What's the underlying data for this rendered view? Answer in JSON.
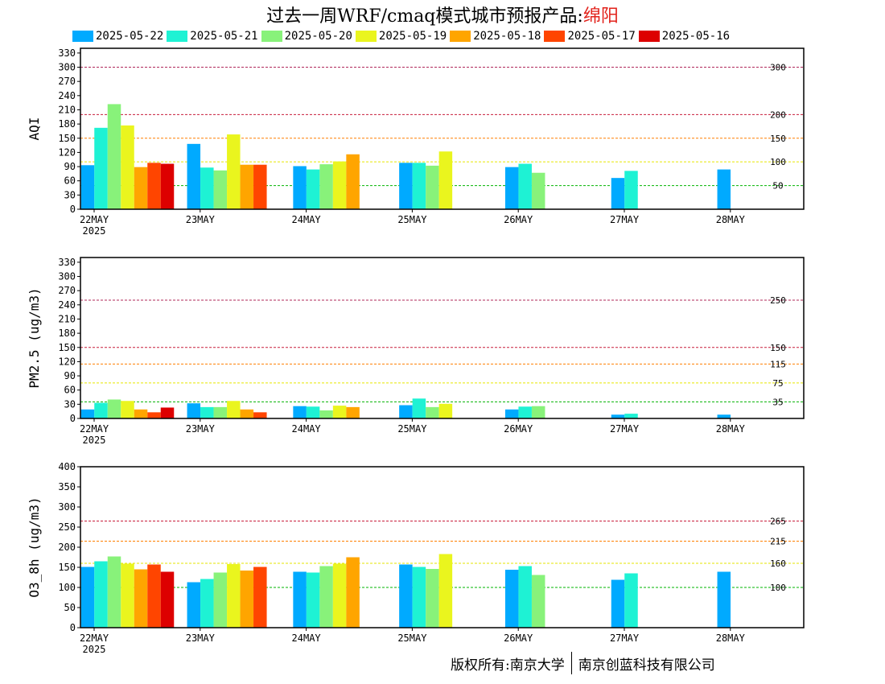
{
  "title": {
    "prefix": "过去一周WRF/cmaq模式城市预报产品:",
    "city": "绵阳"
  },
  "footer": {
    "left": "版权所有:南京大学",
    "right": "南京创蓝科技有限公司"
  },
  "colors": {
    "2025-05-22": "#00aaff",
    "2025-05-21": "#1ef2d4",
    "2025-05-20": "#88f27a",
    "2025-05-19": "#eaf51e",
    "2025-05-18": "#ffa500",
    "2025-05-17": "#ff4500",
    "2025-05-16": "#dd0000"
  },
  "chart_data": [
    {
      "type": "bar",
      "ylabel": "AQI",
      "ylim": [
        0,
        340
      ],
      "yticks": [
        0,
        30,
        60,
        90,
        120,
        150,
        180,
        210,
        240,
        270,
        300,
        330
      ],
      "categories": [
        "22MAY",
        "23MAY",
        "24MAY",
        "25MAY",
        "26MAY",
        "27MAY",
        "28MAY"
      ],
      "first_category_year": "2025",
      "reference_lines": [
        {
          "value": 300,
          "label": "300",
          "color": "#b0285a"
        },
        {
          "value": 200,
          "label": "200",
          "color": "#c81e3c"
        },
        {
          "value": 150,
          "label": "150",
          "color": "#ff7f00"
        },
        {
          "value": 100,
          "label": "100",
          "color": "#e6e600"
        },
        {
          "value": 50,
          "label": "50",
          "color": "#00b400"
        }
      ],
      "series": [
        {
          "name": "2025-05-22",
          "values": [
            93,
            138,
            91,
            98,
            89,
            66,
            84
          ]
        },
        {
          "name": "2025-05-21",
          "values": [
            172,
            88,
            84,
            98,
            96,
            81,
            null
          ]
        },
        {
          "name": "2025-05-20",
          "values": [
            222,
            82,
            95,
            92,
            77,
            null,
            null
          ]
        },
        {
          "name": "2025-05-19",
          "values": [
            177,
            158,
            101,
            122,
            null,
            null,
            null
          ]
        },
        {
          "name": "2025-05-18",
          "values": [
            89,
            94,
            116,
            null,
            null,
            null,
            null
          ]
        },
        {
          "name": "2025-05-17",
          "values": [
            98,
            94,
            null,
            null,
            null,
            null,
            null
          ]
        },
        {
          "name": "2025-05-16",
          "values": [
            96,
            null,
            null,
            null,
            null,
            null,
            null
          ]
        }
      ]
    },
    {
      "type": "bar",
      "ylabel": "PM2.5 (ug/m3)",
      "ylim": [
        0,
        340
      ],
      "yticks": [
        0,
        30,
        60,
        90,
        120,
        150,
        180,
        210,
        240,
        270,
        300,
        330
      ],
      "categories": [
        "22MAY",
        "23MAY",
        "24MAY",
        "25MAY",
        "26MAY",
        "27MAY",
        "28MAY"
      ],
      "first_category_year": "2025",
      "reference_lines": [
        {
          "value": 250,
          "label": "250",
          "color": "#b0285a"
        },
        {
          "value": 150,
          "label": "150",
          "color": "#c81e3c"
        },
        {
          "value": 115,
          "label": "115",
          "color": "#ff7f00"
        },
        {
          "value": 75,
          "label": "75",
          "color": "#e6e600"
        },
        {
          "value": 35,
          "label": "35",
          "color": "#00b400"
        }
      ],
      "series": [
        {
          "name": "2025-05-22",
          "values": [
            19,
            32,
            26,
            28,
            19,
            8,
            8
          ]
        },
        {
          "name": "2025-05-21",
          "values": [
            33,
            24,
            25,
            42,
            25,
            10,
            null
          ]
        },
        {
          "name": "2025-05-20",
          "values": [
            40,
            24,
            17,
            24,
            26,
            null,
            null
          ]
        },
        {
          "name": "2025-05-19",
          "values": [
            37,
            37,
            27,
            31,
            null,
            null,
            null
          ]
        },
        {
          "name": "2025-05-18",
          "values": [
            19,
            19,
            24,
            null,
            null,
            null,
            null
          ]
        },
        {
          "name": "2025-05-17",
          "values": [
            13,
            13,
            null,
            null,
            null,
            null,
            null
          ]
        },
        {
          "name": "2025-05-16",
          "values": [
            23,
            null,
            null,
            null,
            null,
            null,
            null
          ]
        }
      ]
    },
    {
      "type": "bar",
      "ylabel": "O3_8h (ug/m3)",
      "ylim": [
        0,
        400
      ],
      "yticks": [
        0,
        50,
        100,
        150,
        200,
        250,
        300,
        350,
        400
      ],
      "categories": [
        "22MAY",
        "23MAY",
        "24MAY",
        "25MAY",
        "26MAY",
        "27MAY",
        "28MAY"
      ],
      "first_category_year": "2025",
      "reference_lines": [
        {
          "value": 265,
          "label": "265",
          "color": "#c81e3c"
        },
        {
          "value": 215,
          "label": "215",
          "color": "#ff7f00"
        },
        {
          "value": 160,
          "label": "160",
          "color": "#e6e600"
        },
        {
          "value": 100,
          "label": "100",
          "color": "#00b400"
        }
      ],
      "series": [
        {
          "name": "2025-05-22",
          "values": [
            151,
            113,
            139,
            157,
            144,
            119,
            139
          ]
        },
        {
          "name": "2025-05-21",
          "values": [
            165,
            121,
            137,
            151,
            153,
            135,
            null
          ]
        },
        {
          "name": "2025-05-20",
          "values": [
            177,
            137,
            153,
            146,
            131,
            null,
            null
          ]
        },
        {
          "name": "2025-05-19",
          "values": [
            159,
            158,
            159,
            183,
            null,
            null,
            null
          ]
        },
        {
          "name": "2025-05-18",
          "values": [
            145,
            142,
            175,
            null,
            null,
            null,
            null
          ]
        },
        {
          "name": "2025-05-17",
          "values": [
            157,
            151,
            null,
            null,
            null,
            null,
            null
          ]
        },
        {
          "name": "2025-05-16",
          "values": [
            139,
            null,
            null,
            null,
            null,
            null,
            null
          ]
        }
      ]
    }
  ]
}
